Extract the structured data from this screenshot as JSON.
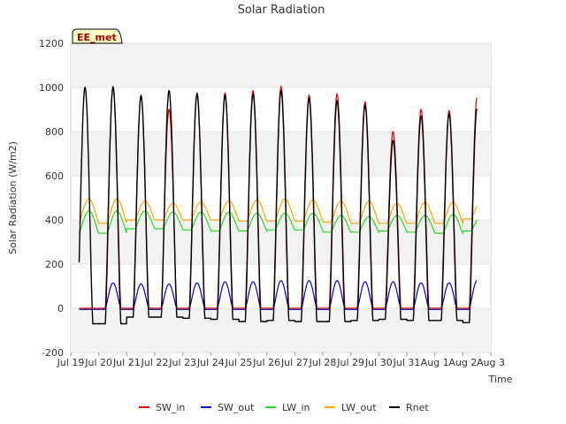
{
  "chart_data": {
    "type": "line",
    "title": "Solar Radiation",
    "xlabel": "Time",
    "ylabel": "Solar Radiation (W/m2)",
    "station_label": "EE_met",
    "ylim": [
      -200,
      1200
    ],
    "yticks": [
      -200,
      0,
      200,
      400,
      600,
      800,
      1000,
      1200
    ],
    "xlim_days": [
      0,
      15
    ],
    "xticks": [
      "Jul 19",
      "Jul 20",
      "Jul 21",
      "Jul 22",
      "Jul 23",
      "Jul 24",
      "Jul 25",
      "Jul 26",
      "Jul 27",
      "Jul 28",
      "Jul 29",
      "Jul 30",
      "Jul 31",
      "Aug 1",
      "Aug 2",
      "Aug 3"
    ],
    "grid": true,
    "legend_position": "bottom",
    "series": [
      {
        "name": "SW_in",
        "color": "#dd0000",
        "days": [
          "Jul 20",
          "Jul 21",
          "Jul 22",
          "Jul 23",
          "Jul 24",
          "Jul 25",
          "Jul 26",
          "Jul 27",
          "Jul 28",
          "Jul 29",
          "Jul 30",
          "Jul 31",
          "Aug 1",
          "Aug 2"
        ],
        "daily_peak": [
          1005,
          965,
          900,
          975,
          975,
          985,
          1005,
          965,
          970,
          935,
          800,
          900,
          895,
          955
        ],
        "night_value": 0
      },
      {
        "name": "SW_out",
        "color": "#0000cc",
        "days": [
          "Jul 20",
          "Jul 21",
          "Jul 22",
          "Jul 23",
          "Jul 24",
          "Jul 25",
          "Jul 26",
          "Jul 27",
          "Jul 28",
          "Jul 29",
          "Jul 30",
          "Jul 31",
          "Aug 1",
          "Aug 2"
        ],
        "daily_peak": [
          115,
          110,
          110,
          115,
          120,
          120,
          125,
          125,
          125,
          120,
          120,
          115,
          115,
          125
        ],
        "night_value": -5
      },
      {
        "name": "LW_in",
        "color": "#22dd22",
        "days": [
          "Jul 20",
          "Jul 21",
          "Jul 22",
          "Jul 23",
          "Jul 24",
          "Jul 25",
          "Jul 26",
          "Jul 27",
          "Jul 28",
          "Jul 29",
          "Jul 30",
          "Jul 31",
          "Aug 1",
          "Aug 2"
        ],
        "daily_peak": [
          440,
          440,
          435,
          435,
          435,
          430,
          430,
          430,
          420,
          415,
          420,
          420,
          425,
          415
        ],
        "night_min": [
          340,
          360,
          360,
          355,
          350,
          350,
          355,
          355,
          345,
          345,
          350,
          345,
          340,
          350
        ]
      },
      {
        "name": "LW_out",
        "color": "#ffa500",
        "days": [
          "Jul 20",
          "Jul 21",
          "Jul 22",
          "Jul 23",
          "Jul 24",
          "Jul 25",
          "Jul 26",
          "Jul 27",
          "Jul 28",
          "Jul 29",
          "Jul 30",
          "Jul 31",
          "Aug 1",
          "Aug 2"
        ],
        "daily_peak": [
          495,
          485,
          475,
          480,
          485,
          490,
          495,
          490,
          485,
          485,
          475,
          480,
          480,
          480
        ],
        "night_min": [
          385,
          400,
          400,
          400,
          400,
          395,
          395,
          395,
          390,
          385,
          385,
          385,
          385,
          405
        ]
      },
      {
        "name": "Rnet",
        "color": "#000000",
        "days": [
          "Jul 20",
          "Jul 21",
          "Jul 22",
          "Jul 23",
          "Jul 24",
          "Jul 25",
          "Jul 26",
          "Jul 27",
          "Jul 28",
          "Jul 29",
          "Jul 30",
          "Jul 31",
          "Aug 1",
          "Aug 2"
        ],
        "daily_peak": [
          1000,
          960,
          985,
          970,
          965,
          970,
          985,
          950,
          940,
          920,
          760,
          870,
          880,
          905
        ],
        "night_value": [
          -70,
          -40,
          -40,
          -45,
          -50,
          -60,
          -55,
          -60,
          -60,
          -55,
          -50,
          -55,
          -55,
          -65
        ]
      }
    ]
  }
}
